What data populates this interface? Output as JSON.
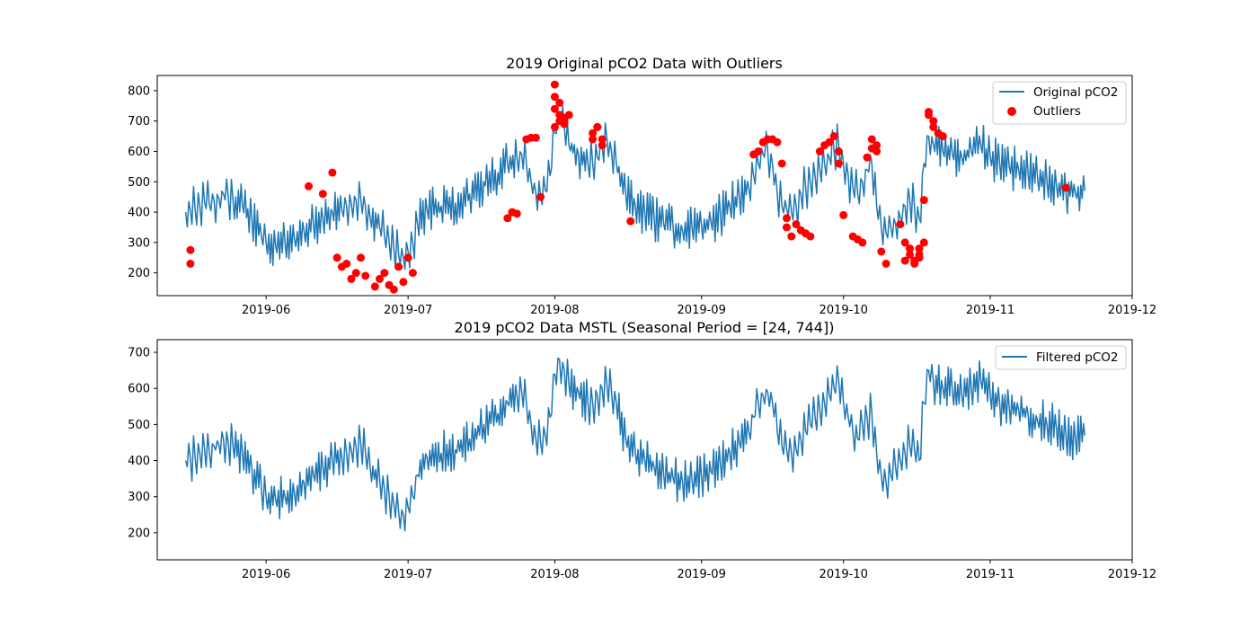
{
  "chart_data": [
    {
      "type": "line",
      "title": "2019 Original pCO2 Data with Outliers",
      "xlabel": "",
      "ylabel": "",
      "x_ticks": [
        "2019-06",
        "2019-07",
        "2019-08",
        "2019-09",
        "2019-10",
        "2019-11",
        "2019-12"
      ],
      "y_ticks": [
        200,
        300,
        400,
        500,
        600,
        700,
        800
      ],
      "xlim": [
        "2019-05-09",
        "2019-12-01"
      ],
      "ylim": [
        125,
        850
      ],
      "grid": false,
      "legend_position": "top-right",
      "series": [
        {
          "name": "Original pCO2",
          "type": "line",
          "color": "#1f77b4",
          "x": [
            "2019-05-15",
            "2019-05-16",
            "2019-05-17",
            "2019-05-18",
            "2019-05-19",
            "2019-05-20",
            "2019-05-21",
            "2019-05-22",
            "2019-05-23",
            "2019-05-24",
            "2019-05-25",
            "2019-05-27",
            "2019-05-29",
            "2019-05-31",
            "2019-06-01",
            "2019-06-03",
            "2019-06-05",
            "2019-06-07",
            "2019-06-09",
            "2019-06-11",
            "2019-06-13",
            "2019-06-15",
            "2019-06-17",
            "2019-06-18",
            "2019-06-19",
            "2019-06-20",
            "2019-06-21",
            "2019-06-22",
            "2019-06-23",
            "2019-06-25",
            "2019-06-26",
            "2019-06-27",
            "2019-06-28",
            "2019-06-29",
            "2019-06-30",
            "2019-07-01",
            "2019-07-02",
            "2019-07-03",
            "2019-07-05",
            "2019-07-08",
            "2019-07-11",
            "2019-07-14",
            "2019-07-17",
            "2019-07-20",
            "2019-07-22",
            "2019-07-24",
            "2019-07-25",
            "2019-07-26",
            "2019-07-27",
            "2019-07-28",
            "2019-07-29",
            "2019-07-30",
            "2019-07-31",
            "2019-08-01",
            "2019-08-02",
            "2019-08-03",
            "2019-08-04",
            "2019-08-06",
            "2019-08-08",
            "2019-08-09",
            "2019-08-10",
            "2019-08-11",
            "2019-08-12",
            "2019-08-13",
            "2019-08-14",
            "2019-08-16",
            "2019-08-18",
            "2019-08-20",
            "2019-08-22",
            "2019-08-24",
            "2019-08-26",
            "2019-08-28",
            "2019-08-30",
            "2019-09-01",
            "2019-09-03",
            "2019-09-05",
            "2019-09-07",
            "2019-09-09",
            "2019-09-11",
            "2019-09-12",
            "2019-09-13",
            "2019-09-14",
            "2019-09-15",
            "2019-09-16",
            "2019-09-17",
            "2019-09-18",
            "2019-09-19",
            "2019-09-20",
            "2019-09-21",
            "2019-09-22",
            "2019-09-23",
            "2019-09-24",
            "2019-09-25",
            "2019-09-26",
            "2019-09-27",
            "2019-09-28",
            "2019-09-29",
            "2019-09-30",
            "2019-10-01",
            "2019-10-02",
            "2019-10-03",
            "2019-10-04",
            "2019-10-05",
            "2019-10-06",
            "2019-10-07",
            "2019-10-08",
            "2019-10-09",
            "2019-10-10",
            "2019-10-11",
            "2019-10-12",
            "2019-10-13",
            "2019-10-14",
            "2019-10-15",
            "2019-10-16",
            "2019-10-17",
            "2019-10-18",
            "2019-10-19",
            "2019-10-20",
            "2019-10-22",
            "2019-10-24",
            "2019-10-26",
            "2019-10-28",
            "2019-10-30",
            "2019-11-01",
            "2019-11-03",
            "2019-11-05",
            "2019-11-07",
            "2019-11-09",
            "2019-11-11",
            "2019-11-13",
            "2019-11-15",
            "2019-11-17",
            "2019-11-19",
            "2019-11-21"
          ],
          "y": [
            400,
            405,
            410,
            420,
            430,
            425,
            440,
            445,
            460,
            450,
            440,
            420,
            380,
            320,
            300,
            290,
            300,
            310,
            340,
            360,
            380,
            400,
            410,
            420,
            430,
            440,
            445,
            420,
            380,
            350,
            320,
            300,
            280,
            260,
            250,
            270,
            300,
            360,
            410,
            420,
            430,
            460,
            500,
            530,
            560,
            580,
            590,
            560,
            500,
            460,
            450,
            470,
            520,
            660,
            720,
            680,
            620,
            590,
            560,
            560,
            580,
            620,
            640,
            600,
            560,
            460,
            420,
            400,
            380,
            360,
            350,
            340,
            345,
            355,
            370,
            390,
            420,
            450,
            480,
            520,
            560,
            590,
            600,
            560,
            460,
            420,
            410,
            400,
            420,
            460,
            480,
            500,
            520,
            540,
            560,
            580,
            600,
            620,
            560,
            520,
            480,
            460,
            500,
            540,
            560,
            420,
            350,
            330,
            350,
            360,
            380,
            420,
            440,
            420,
            380,
            560,
            650,
            620,
            600,
            590,
            580,
            600,
            620,
            580,
            560,
            550,
            540,
            530,
            510,
            500,
            490,
            470,
            460,
            470
          ]
        },
        {
          "name": "Outliers",
          "type": "scatter",
          "color": "#ff0000",
          "x": [
            "2019-05-16",
            "2019-05-16",
            "2019-06-10",
            "2019-06-13",
            "2019-06-15",
            "2019-06-16",
            "2019-06-17",
            "2019-06-18",
            "2019-06-19",
            "2019-06-20",
            "2019-06-21",
            "2019-06-22",
            "2019-06-24",
            "2019-06-25",
            "2019-06-26",
            "2019-06-27",
            "2019-06-28",
            "2019-06-29",
            "2019-06-30",
            "2019-07-01",
            "2019-07-02",
            "2019-07-22",
            "2019-07-23",
            "2019-07-24",
            "2019-07-26",
            "2019-07-27",
            "2019-07-28",
            "2019-07-29",
            "2019-08-01",
            "2019-08-01",
            "2019-08-01",
            "2019-08-01",
            "2019-08-02",
            "2019-08-02",
            "2019-08-02",
            "2019-08-03",
            "2019-08-03",
            "2019-08-03",
            "2019-08-04",
            "2019-08-09",
            "2019-08-09",
            "2019-08-10",
            "2019-08-10",
            "2019-08-11",
            "2019-08-11",
            "2019-08-17",
            "2019-09-12",
            "2019-09-13",
            "2019-09-14",
            "2019-09-15",
            "2019-09-16",
            "2019-09-17",
            "2019-09-18",
            "2019-09-19",
            "2019-09-19",
            "2019-09-20",
            "2019-09-21",
            "2019-09-22",
            "2019-09-23",
            "2019-09-24",
            "2019-09-26",
            "2019-09-27",
            "2019-09-28",
            "2019-09-29",
            "2019-09-30",
            "2019-09-30",
            "2019-10-01",
            "2019-10-03",
            "2019-10-04",
            "2019-10-05",
            "2019-10-06",
            "2019-10-07",
            "2019-10-07",
            "2019-10-08",
            "2019-10-08",
            "2019-10-09",
            "2019-10-10",
            "2019-10-13",
            "2019-10-14",
            "2019-10-14",
            "2019-10-15",
            "2019-10-15",
            "2019-10-16",
            "2019-10-16",
            "2019-10-17",
            "2019-10-17",
            "2019-10-17",
            "2019-10-18",
            "2019-10-18",
            "2019-10-19",
            "2019-10-19",
            "2019-10-20",
            "2019-10-20",
            "2019-10-21",
            "2019-10-22",
            "2019-11-17"
          ],
          "y": [
            275,
            230,
            485,
            460,
            530,
            250,
            220,
            230,
            180,
            200,
            250,
            190,
            155,
            180,
            200,
            160,
            145,
            220,
            170,
            250,
            200,
            380,
            400,
            395,
            640,
            645,
            645,
            450,
            680,
            740,
            780,
            820,
            760,
            720,
            700,
            710,
            700,
            690,
            720,
            640,
            660,
            680,
            680,
            640,
            620,
            370,
            590,
            600,
            630,
            640,
            640,
            630,
            560,
            380,
            350,
            320,
            360,
            340,
            330,
            320,
            600,
            620,
            630,
            650,
            600,
            560,
            390,
            320,
            310,
            300,
            580,
            610,
            640,
            620,
            600,
            270,
            230,
            360,
            240,
            300,
            280,
            260,
            240,
            230,
            250,
            260,
            280,
            300,
            440,
            730,
            720,
            700,
            680,
            660,
            650,
            480
          ]
        }
      ]
    },
    {
      "type": "line",
      "title": "2019 pCO2 Data MSTL (Seasonal Period = [24, 744])",
      "xlabel": "",
      "ylabel": "",
      "x_ticks": [
        "2019-06",
        "2019-07",
        "2019-08",
        "2019-09",
        "2019-10",
        "2019-11",
        "2019-12"
      ],
      "y_ticks": [
        200,
        300,
        400,
        500,
        600,
        700
      ],
      "xlim": [
        "2019-05-09",
        "2019-12-01"
      ],
      "ylim": [
        125,
        735
      ],
      "grid": false,
      "legend_position": "top-right",
      "series": [
        {
          "name": "Filtered pCO2",
          "type": "line",
          "color": "#1f77b4",
          "x": [
            "2019-05-15",
            "2019-05-16",
            "2019-05-17",
            "2019-05-18",
            "2019-05-19",
            "2019-05-20",
            "2019-05-21",
            "2019-05-22",
            "2019-05-23",
            "2019-05-24",
            "2019-05-25",
            "2019-05-27",
            "2019-05-29",
            "2019-05-31",
            "2019-06-01",
            "2019-06-03",
            "2019-06-05",
            "2019-06-07",
            "2019-06-09",
            "2019-06-11",
            "2019-06-13",
            "2019-06-15",
            "2019-06-17",
            "2019-06-18",
            "2019-06-19",
            "2019-06-20",
            "2019-06-21",
            "2019-06-22",
            "2019-06-23",
            "2019-06-25",
            "2019-06-26",
            "2019-06-27",
            "2019-06-28",
            "2019-06-29",
            "2019-06-30",
            "2019-07-01",
            "2019-07-02",
            "2019-07-03",
            "2019-07-05",
            "2019-07-08",
            "2019-07-11",
            "2019-07-14",
            "2019-07-17",
            "2019-07-20",
            "2019-07-22",
            "2019-07-24",
            "2019-07-25",
            "2019-07-26",
            "2019-07-27",
            "2019-07-28",
            "2019-07-29",
            "2019-07-30",
            "2019-07-31",
            "2019-08-01",
            "2019-08-02",
            "2019-08-03",
            "2019-08-04",
            "2019-08-06",
            "2019-08-08",
            "2019-08-09",
            "2019-08-10",
            "2019-08-11",
            "2019-08-12",
            "2019-08-13",
            "2019-08-14",
            "2019-08-16",
            "2019-08-18",
            "2019-08-20",
            "2019-08-22",
            "2019-08-24",
            "2019-08-26",
            "2019-08-28",
            "2019-08-30",
            "2019-09-01",
            "2019-09-03",
            "2019-09-05",
            "2019-09-07",
            "2019-09-09",
            "2019-09-11",
            "2019-09-12",
            "2019-09-13",
            "2019-09-14",
            "2019-09-15",
            "2019-09-16",
            "2019-09-17",
            "2019-09-18",
            "2019-09-19",
            "2019-09-20",
            "2019-09-21",
            "2019-09-22",
            "2019-09-23",
            "2019-09-24",
            "2019-09-25",
            "2019-09-26",
            "2019-09-27",
            "2019-09-28",
            "2019-09-29",
            "2019-09-30",
            "2019-10-01",
            "2019-10-02",
            "2019-10-03",
            "2019-10-04",
            "2019-10-05",
            "2019-10-06",
            "2019-10-07",
            "2019-10-08",
            "2019-10-09",
            "2019-10-10",
            "2019-10-11",
            "2019-10-12",
            "2019-10-13",
            "2019-10-14",
            "2019-10-15",
            "2019-10-16",
            "2019-10-17",
            "2019-10-18",
            "2019-10-19",
            "2019-10-20",
            "2019-10-22",
            "2019-10-24",
            "2019-10-26",
            "2019-10-28",
            "2019-10-30",
            "2019-11-01",
            "2019-11-03",
            "2019-11-05",
            "2019-11-07",
            "2019-11-09",
            "2019-11-11",
            "2019-11-13",
            "2019-11-15",
            "2019-11-17",
            "2019-11-19",
            "2019-11-21"
          ],
          "y": [
            400,
            405,
            410,
            420,
            430,
            425,
            440,
            445,
            460,
            450,
            440,
            420,
            380,
            320,
            300,
            290,
            300,
            310,
            340,
            360,
            380,
            400,
            410,
            420,
            430,
            440,
            445,
            420,
            380,
            350,
            320,
            300,
            280,
            260,
            250,
            270,
            300,
            360,
            410,
            420,
            430,
            460,
            500,
            530,
            560,
            580,
            590,
            560,
            500,
            460,
            450,
            470,
            520,
            640,
            680,
            650,
            610,
            590,
            560,
            560,
            580,
            600,
            610,
            590,
            560,
            460,
            420,
            400,
            380,
            360,
            350,
            340,
            345,
            355,
            370,
            390,
            420,
            450,
            480,
            520,
            560,
            580,
            590,
            560,
            480,
            440,
            430,
            420,
            430,
            460,
            480,
            500,
            520,
            540,
            560,
            580,
            600,
            620,
            560,
            520,
            480,
            460,
            500,
            520,
            530,
            420,
            360,
            340,
            360,
            380,
            400,
            420,
            440,
            430,
            400,
            560,
            650,
            620,
            600,
            590,
            580,
            600,
            620,
            580,
            560,
            550,
            540,
            530,
            510,
            500,
            490,
            470,
            460,
            470
          ]
        }
      ]
    }
  ]
}
